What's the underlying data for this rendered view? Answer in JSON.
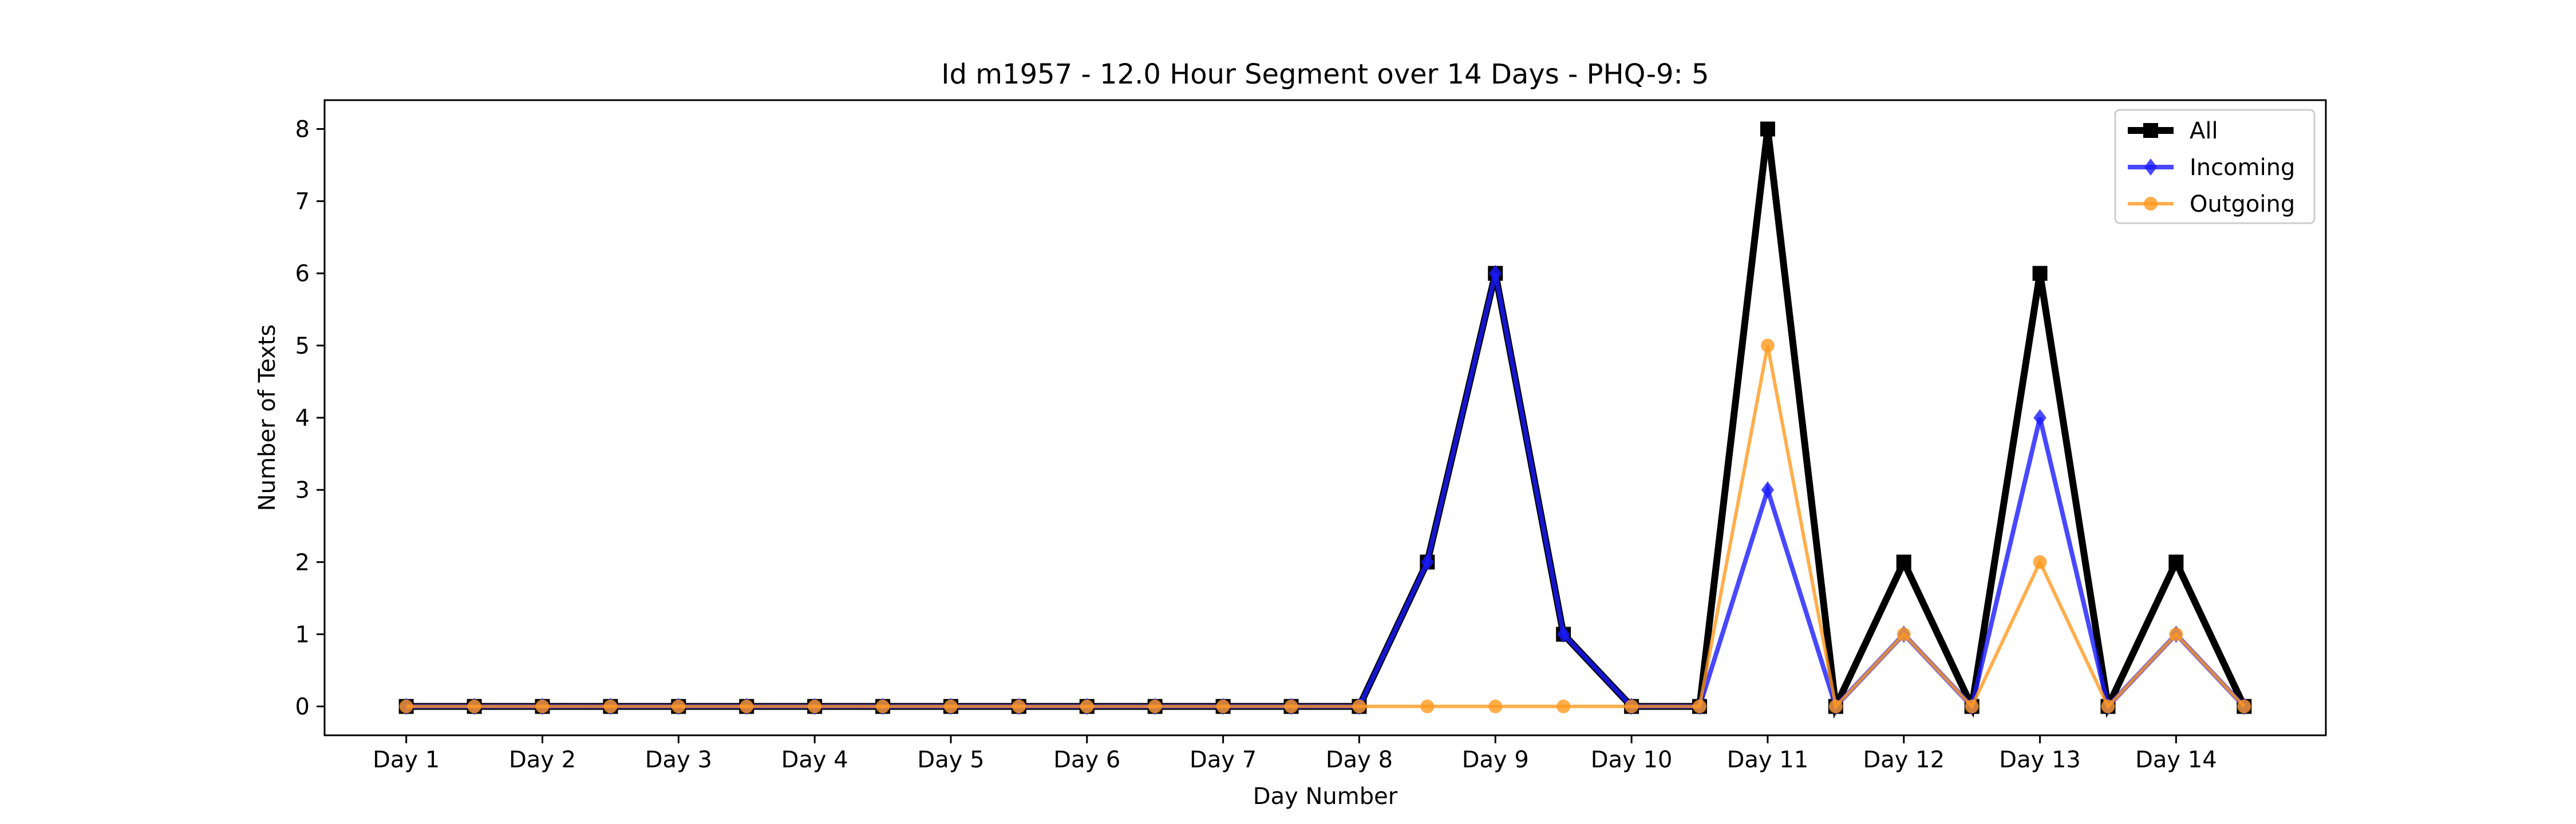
{
  "chart_data": {
    "type": "line",
    "title": "Id m1957 - 12.0 Hour Segment over 14 Days - PHQ-9: 5",
    "xlabel": "Day Number",
    "ylabel": "Number of Texts",
    "x": [
      1,
      1.5,
      2,
      2.5,
      3,
      3.5,
      4,
      4.5,
      5,
      5.5,
      6,
      6.5,
      7,
      7.5,
      8,
      8.5,
      9,
      9.5,
      10,
      10.5,
      11,
      11.5,
      12,
      12.5,
      13,
      13.5,
      14,
      14.5
    ],
    "xticks": [
      1,
      2,
      3,
      4,
      5,
      6,
      7,
      8,
      9,
      10,
      11,
      12,
      13,
      14
    ],
    "xtick_labels": [
      "Day 1",
      "Day 2",
      "Day 3",
      "Day 4",
      "Day 5",
      "Day 6",
      "Day 7",
      "Day 8",
      "Day 9",
      "Day 10",
      "Day 11",
      "Day 12",
      "Day 13",
      "Day 14"
    ],
    "yticks": [
      0,
      1,
      2,
      3,
      4,
      5,
      6,
      7,
      8
    ],
    "ylim": [
      -0.4,
      8.4
    ],
    "xlim": [
      0.4,
      15.1
    ],
    "grid": false,
    "legend_position": "top-right",
    "series": [
      {
        "name": "All",
        "color": "#000000",
        "marker": "square",
        "values": [
          0,
          0,
          0,
          0,
          0,
          0,
          0,
          0,
          0,
          0,
          0,
          0,
          0,
          0,
          0,
          2,
          6,
          1,
          0,
          0,
          8,
          0,
          2,
          0,
          6,
          0,
          2,
          0
        ]
      },
      {
        "name": "Incoming",
        "color": "#1a1aff",
        "marker": "diamond",
        "values": [
          0,
          0,
          0,
          0,
          0,
          0,
          0,
          0,
          0,
          0,
          0,
          0,
          0,
          0,
          0,
          2,
          6,
          1,
          0,
          0,
          3,
          0,
          1,
          0,
          4,
          0,
          1,
          0
        ]
      },
      {
        "name": "Outgoing",
        "color": "#ff9a1f",
        "marker": "circle",
        "values": [
          0,
          0,
          0,
          0,
          0,
          0,
          0,
          0,
          0,
          0,
          0,
          0,
          0,
          0,
          0,
          0,
          0,
          0,
          0,
          0,
          5,
          0,
          1,
          0,
          2,
          0,
          1,
          0
        ]
      }
    ]
  }
}
